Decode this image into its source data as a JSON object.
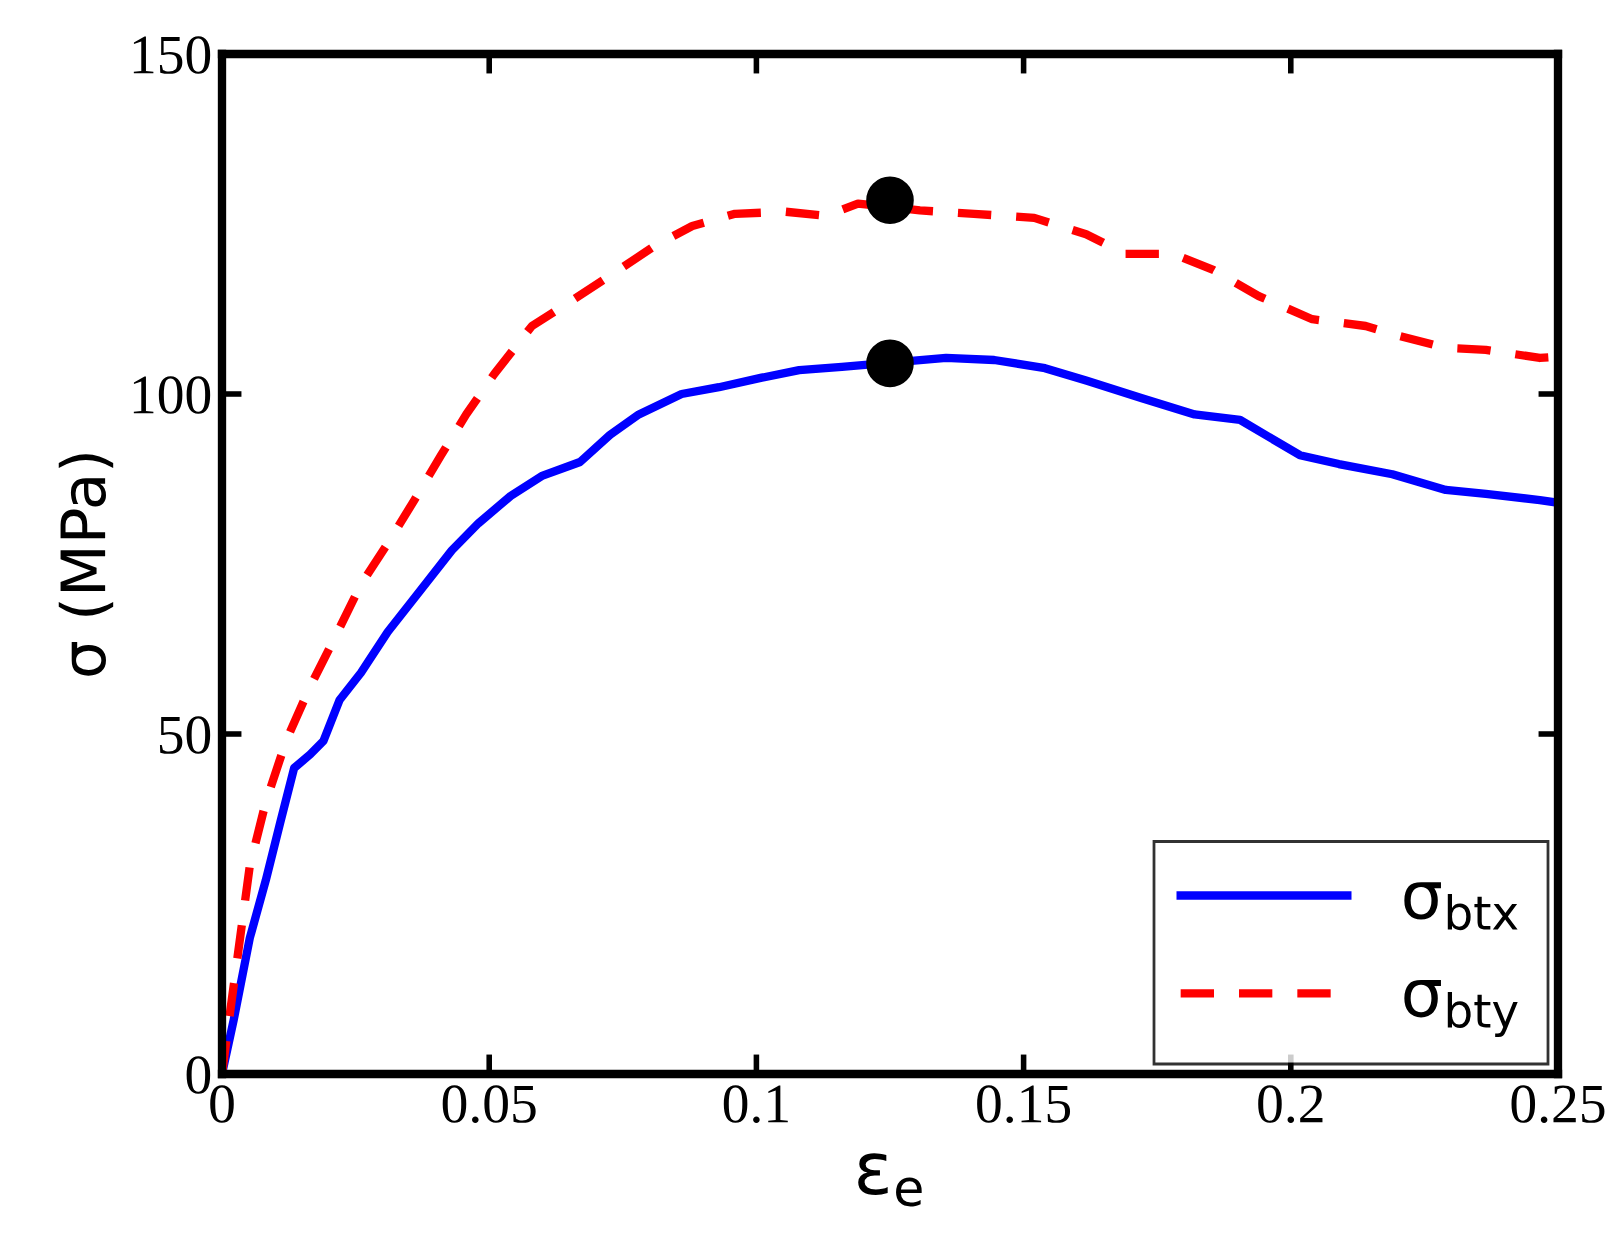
{
  "chart_data": {
    "type": "line",
    "xlabel": "ε$_{e}$",
    "ylabel": "σ (MPa)",
    "xlim": [
      0,
      0.25
    ],
    "ylim": [
      0,
      150
    ],
    "xticks": [
      0,
      0.05,
      0.1,
      0.15,
      0.2,
      0.25
    ],
    "yticks": [
      0,
      50,
      100,
      150
    ],
    "grid": false,
    "legend": "bottom right",
    "series": [
      {
        "name": "σ$_{btx}$",
        "color": "#0000ff",
        "line_style": "solid",
        "x": [
          0,
          0.0022,
          0.0052,
          0.0082,
          0.0109,
          0.0135,
          0.0165,
          0.019,
          0.022,
          0.026,
          0.031,
          0.037,
          0.043,
          0.048,
          0.054,
          0.06,
          0.067,
          0.0726,
          0.078,
          0.086,
          0.093,
          0.101,
          0.108,
          0.116,
          0.1355,
          0.1445,
          0.154,
          0.1617,
          0.172,
          0.182,
          0.1905,
          0.2017,
          0.209,
          0.219,
          0.229,
          0.2365,
          0.2466,
          0.25
        ],
        "values": [
          0,
          8,
          20,
          28.5,
          37,
          45,
          47,
          49,
          55,
          59,
          65,
          71,
          77,
          81,
          85,
          88,
          90,
          94,
          97,
          100,
          101,
          102.4,
          103.5,
          104,
          105.3,
          105,
          103.8,
          102,
          99.4,
          97,
          96.2,
          91,
          89.7,
          88.2,
          85.9,
          85.3,
          84.4,
          84
        ]
      },
      {
        "name": "σ$_{bty}$",
        "color": "#ff0000",
        "line_style": "dashed",
        "x": [
          0,
          0.0015,
          0.0052,
          0.0082,
          0.012,
          0.0165,
          0.021,
          0.026,
          0.031,
          0.036,
          0.041,
          0.0457,
          0.051,
          0.058,
          0.066,
          0.073,
          0.081,
          0.088,
          0.096,
          0.1055,
          0.113,
          0.119,
          0.1306,
          0.1407,
          0.152,
          0.1617,
          0.169,
          0.178,
          0.1856,
          0.194,
          0.204,
          0.214,
          0.219,
          0.229,
          0.2365,
          0.2466,
          0.25
        ],
        "values": [
          0,
          9,
          30.6,
          40,
          49,
          57,
          64,
          72,
          78,
          84.4,
          91,
          97,
          103,
          110,
          114,
          117.6,
          121.8,
          124.7,
          126.5,
          126.8,
          126.2,
          128,
          127,
          126.5,
          125.9,
          123.5,
          120.6,
          120.6,
          118.2,
          114.4,
          111,
          110,
          108.8,
          106.8,
          106.5,
          105.3,
          105.5
        ]
      },
      {
        "type": "scatter",
        "color": "#000000",
        "marker": "circle",
        "x": [
          0.125,
          0.125
        ],
        "values": [
          104.5,
          128.5
        ]
      }
    ]
  }
}
